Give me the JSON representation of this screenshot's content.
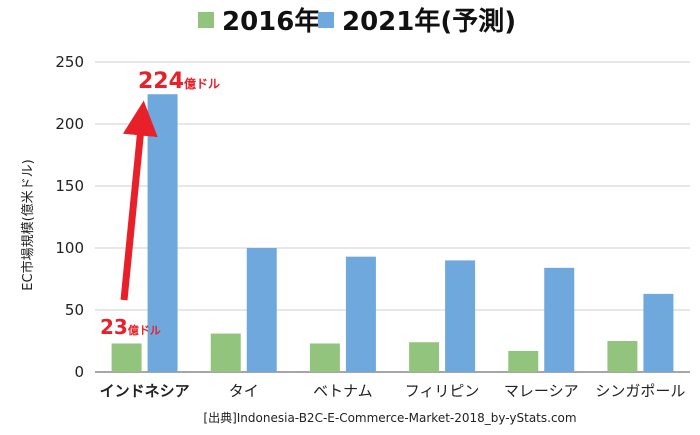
{
  "chart_data": {
    "type": "bar",
    "categories": [
      "インドネシア",
      "タイ",
      "ベトナム",
      "フィリピン",
      "マレーシア",
      "シンガポール"
    ],
    "series": [
      {
        "name": "2016年",
        "color": "#93c47d",
        "values": [
          23,
          31,
          23,
          24,
          17,
          25
        ]
      },
      {
        "name": "2021年(予測)",
        "color": "#6fa8dc",
        "values": [
          224,
          100,
          93,
          90,
          84,
          63
        ]
      }
    ],
    "ylabel": "EC市場規模(億米ドル)",
    "ylim": [
      0,
      250
    ],
    "yticks": [
      0,
      50,
      100,
      150,
      200,
      250
    ],
    "grid": true,
    "legend_position": "top",
    "highlight_category_color": "#e8202a",
    "annotations": {
      "start_value": "23",
      "start_unit": "億ドル",
      "end_value": "224",
      "end_unit": "億ドル"
    },
    "source": "[出典]Indonesia-B2C-E-Commerce-Market-2018_by-yStats.com"
  }
}
